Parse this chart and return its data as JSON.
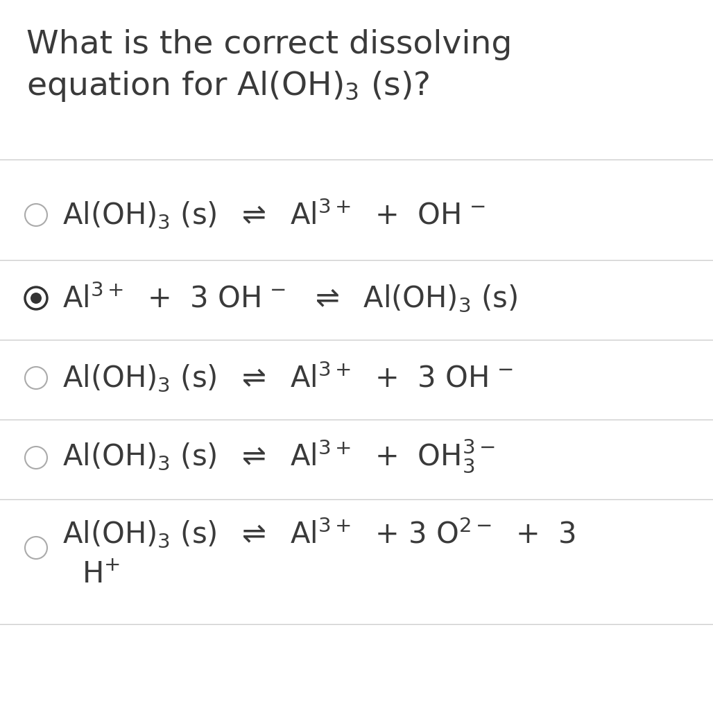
{
  "background_color": "#ffffff",
  "text_color": "#3a3a3a",
  "title_line1": "What is the correct dissolving",
  "title_line2": "equation for Al(OH)$_3$ (s)?",
  "title_fontsize": 34,
  "option_fontsize": 30,
  "divider_color": "#cccccc",
  "radio_border_color": "#aaaaaa",
  "radio_selected_inner": "#333333",
  "radio_selected_border": "#333333",
  "options": [
    {
      "selected": false,
      "line1": "Al(OH)$_3$ (s)  $\\rightleftharpoons$  Al$^{3+}$  +  OH$^{\\,-}$",
      "line2": null
    },
    {
      "selected": true,
      "line1": "Al$^{3+}$  +  3 OH$^{\\,-}$  $\\rightleftharpoons$  Al(OH)$_3$ (s)",
      "line2": null
    },
    {
      "selected": false,
      "line1": "Al(OH)$_3$ (s)  $\\rightleftharpoons$  Al$^{3+}$  +  3 OH$^{\\,-}$",
      "line2": null
    },
    {
      "selected": false,
      "line1": "Al(OH)$_3$ (s)  $\\rightleftharpoons$  Al$^{3+}$  +  OH$_3^{3-}$",
      "line2": null
    },
    {
      "selected": false,
      "line1": "Al(OH)$_3$ (s)  $\\rightleftharpoons$  Al$^{3+}$  + 3 O$^{2-}$  +  3",
      "line2": "H$^{+}$"
    }
  ]
}
